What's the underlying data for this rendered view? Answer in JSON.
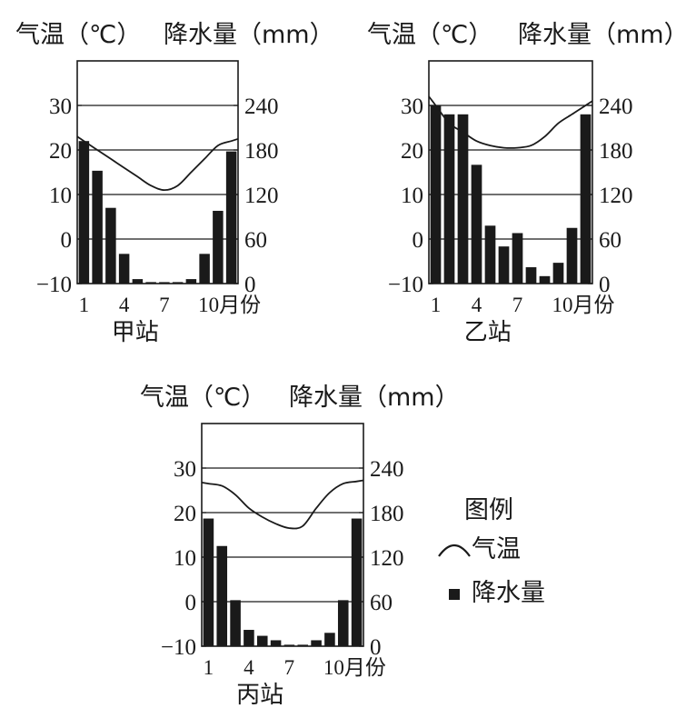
{
  "chart_data": [
    {
      "type": "bar+line",
      "title": "甲站",
      "left_axis_label": "气温（℃）",
      "right_axis_label": "降水量（mm）",
      "temp_ticks": [
        "30",
        "20",
        "10",
        "0",
        "−10"
      ],
      "precip_ticks": [
        "240",
        "180",
        "120",
        "60",
        "0"
      ],
      "month_ticks": [
        "1",
        "4",
        "7",
        "10月份"
      ],
      "temp_range": [
        -10,
        40
      ],
      "precip_range": [
        0,
        300
      ],
      "months": [
        1,
        2,
        3,
        4,
        5,
        6,
        7,
        8,
        9,
        10,
        11,
        12
      ],
      "precipitation_mm": [
        192,
        152,
        102,
        40,
        6,
        2,
        0,
        2,
        6,
        40,
        98,
        178
      ],
      "temperature_c": [
        22,
        20,
        18,
        16,
        14,
        12,
        11,
        12,
        15,
        18,
        21,
        22
      ]
    },
    {
      "type": "bar+line",
      "title": "乙站",
      "left_axis_label": "气温（℃）",
      "right_axis_label": "降水量（mm）",
      "temp_ticks": [
        "30",
        "20",
        "10",
        "0",
        "−10"
      ],
      "precip_ticks": [
        "240",
        "180",
        "120",
        "60",
        "0"
      ],
      "month_ticks": [
        "1",
        "4",
        "7",
        "10月份"
      ],
      "temp_range": [
        -10,
        40
      ],
      "precip_range": [
        0,
        300
      ],
      "months": [
        1,
        2,
        3,
        4,
        5,
        6,
        7,
        8,
        9,
        10,
        11,
        12
      ],
      "precipitation_mm": [
        240,
        228,
        228,
        160,
        78,
        50,
        68,
        22,
        10,
        28,
        75,
        228
      ],
      "temperature_c": [
        30,
        26,
        24,
        22,
        21,
        20.5,
        20.5,
        21,
        23,
        26,
        28,
        30
      ]
    },
    {
      "type": "bar+line",
      "title": "丙站",
      "left_axis_label": "气温（℃）",
      "right_axis_label": "降水量（mm）",
      "temp_ticks": [
        "30",
        "20",
        "10",
        "0",
        "−10"
      ],
      "precip_ticks": [
        "240",
        "180",
        "120",
        "60",
        "0"
      ],
      "month_ticks": [
        "1",
        "4",
        "7",
        "10月份"
      ],
      "temp_range": [
        -10,
        40
      ],
      "precip_range": [
        0,
        300
      ],
      "months": [
        1,
        2,
        3,
        4,
        5,
        6,
        7,
        8,
        9,
        10,
        11,
        12
      ],
      "precipitation_mm": [
        172,
        135,
        62,
        22,
        14,
        8,
        2,
        2,
        8,
        18,
        62,
        172
      ],
      "temperature_c": [
        26.5,
        26,
        24,
        21,
        19,
        17.5,
        16.5,
        17,
        21,
        24.5,
        26.5,
        27
      ]
    }
  ],
  "legend": {
    "title": "图例",
    "temperature_label": "气温",
    "precipitation_label": "降水量"
  }
}
